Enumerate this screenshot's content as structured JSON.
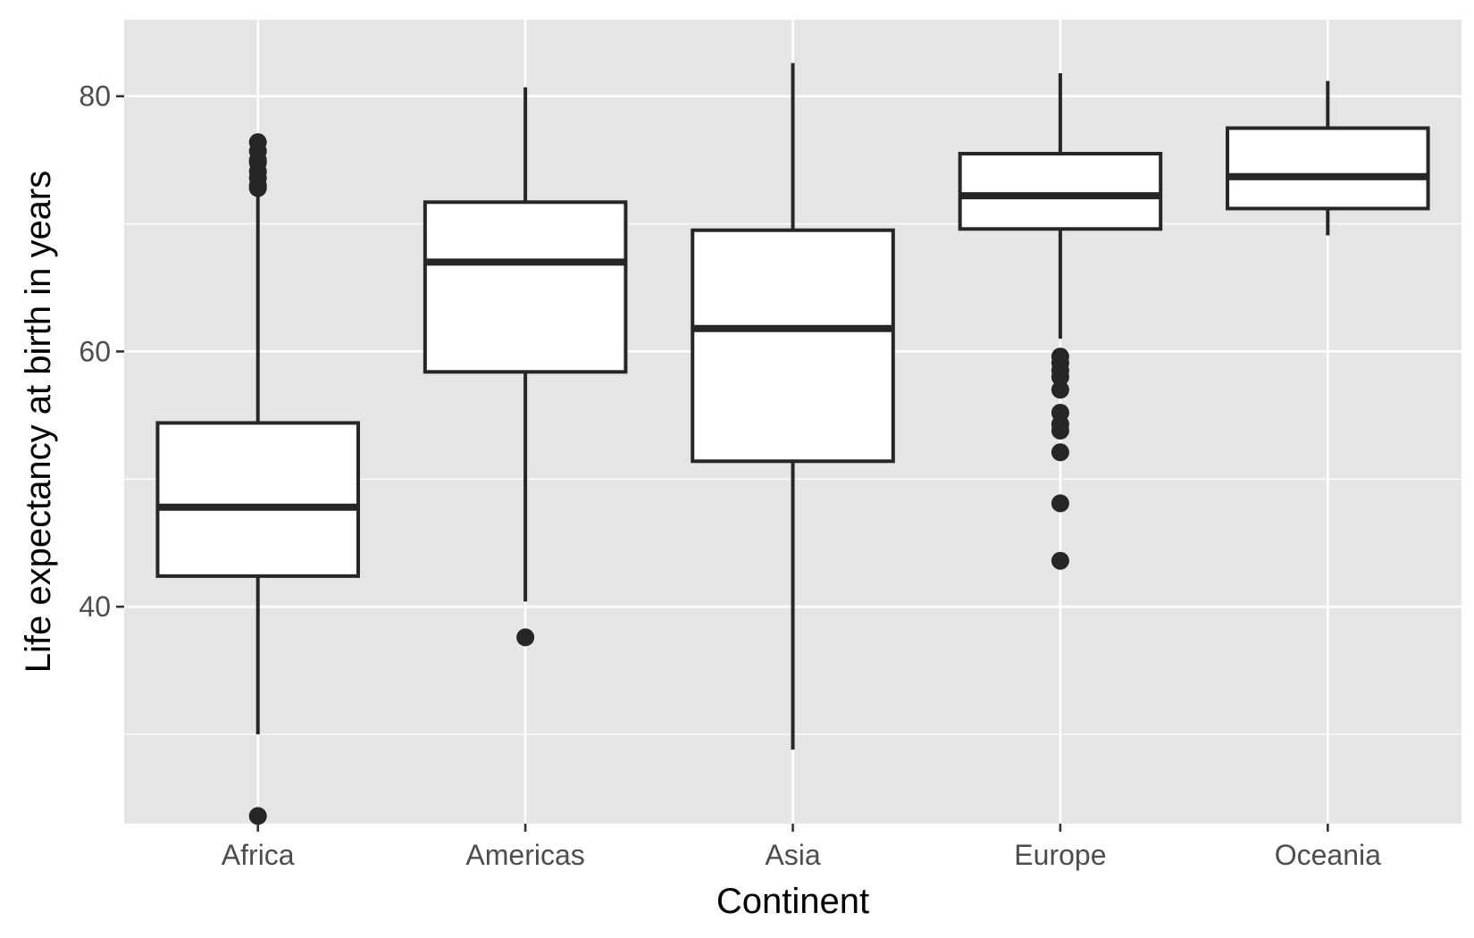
{
  "chart_data": {
    "type": "boxplot",
    "title": "",
    "xlabel": "Continent",
    "ylabel": "Life expectancy at birth in years",
    "ylim": [
      23,
      86
    ],
    "yticks": [
      40,
      60,
      80
    ],
    "grid": true,
    "legend": "none",
    "colors": {
      "panel": "#e5e5e5",
      "grid": "#ffffff",
      "box_fill": "#ffffff",
      "stroke": "#262626",
      "tick_text": "#4d4d4d",
      "title_text": "#000000"
    },
    "categories": [
      "Africa",
      "Americas",
      "Asia",
      "Europe",
      "Oceania"
    ],
    "boxes": [
      {
        "category": "Africa",
        "lower_whisker": 30.0,
        "q1": 42.4,
        "median": 47.8,
        "q3": 54.4,
        "upper_whisker": 72.8,
        "outliers": [
          23.6,
          72.8,
          73.0,
          73.6,
          74.1,
          74.8,
          75.0,
          75.7,
          76.4
        ]
      },
      {
        "category": "Americas",
        "lower_whisker": 40.4,
        "q1": 58.4,
        "median": 67.0,
        "q3": 71.7,
        "upper_whisker": 80.7,
        "outliers": [
          37.6
        ]
      },
      {
        "category": "Asia",
        "lower_whisker": 28.8,
        "q1": 51.4,
        "median": 61.8,
        "q3": 69.5,
        "upper_whisker": 82.6,
        "outliers": []
      },
      {
        "category": "Europe",
        "lower_whisker": 61.0,
        "q1": 69.6,
        "median": 72.2,
        "q3": 75.5,
        "upper_whisker": 81.8,
        "outliers": [
          43.6,
          48.1,
          52.1,
          53.8,
          54.3,
          55.2,
          57.0,
          58.0,
          58.5,
          59.1,
          59.6
        ]
      },
      {
        "category": "Oceania",
        "lower_whisker": 69.1,
        "q1": 71.2,
        "median": 73.7,
        "q3": 77.5,
        "upper_whisker": 81.2,
        "outliers": []
      }
    ]
  }
}
